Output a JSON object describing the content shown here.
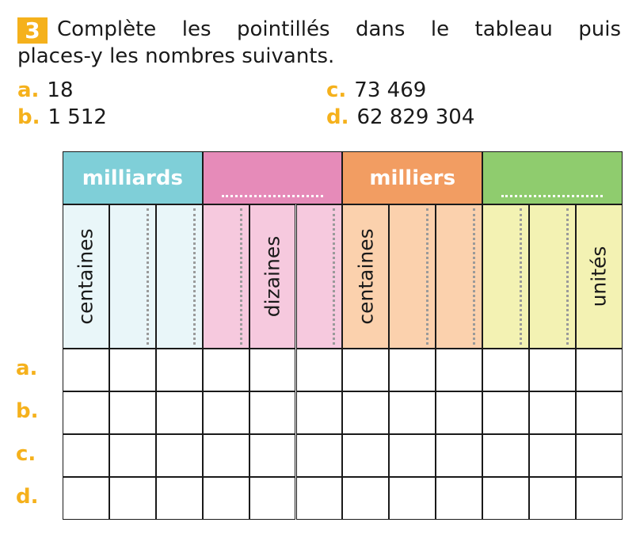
{
  "exercise": {
    "number": "3",
    "instruction_line1": "Complète les pointillés dans le tableau puis",
    "instruction_line2": "places-y les nombres suivants."
  },
  "items": [
    {
      "letter": "a.",
      "value": "18"
    },
    {
      "letter": "b.",
      "value": "1 512"
    },
    {
      "letter": "c.",
      "value": "73 469"
    },
    {
      "letter": "d.",
      "value": "62 829 304"
    }
  ],
  "table": {
    "groups": [
      {
        "label": "milliards",
        "color": "#7fcfd8",
        "light": "#e9f6f9"
      },
      {
        "label": ".............",
        "color": "#e68bb9",
        "light": "#f6c9de"
      },
      {
        "label": "milliers",
        "color": "#f29d62",
        "light": "#fbd1ad"
      },
      {
        "label": ".............",
        "color": "#8fcc6e",
        "light": "#f3f2b3"
      }
    ],
    "sub_labels": {
      "c0": "centaines",
      "c4": "dizaines",
      "c6": "centaines",
      "c11": "unités"
    },
    "row_labels": [
      "a.",
      "b.",
      "c.",
      "d."
    ]
  }
}
